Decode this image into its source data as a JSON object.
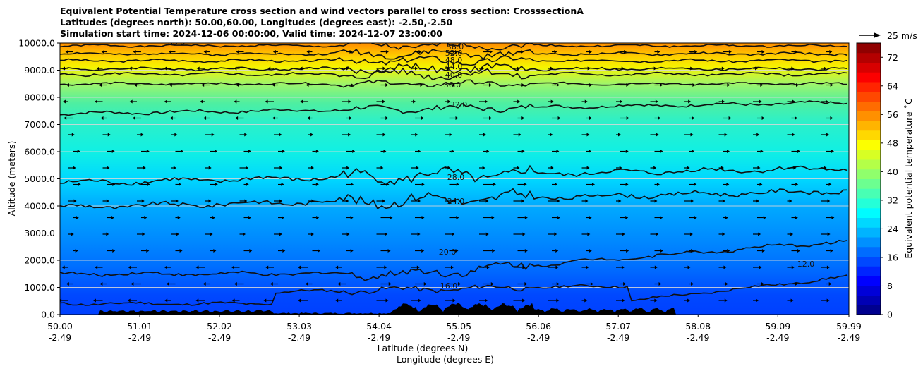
{
  "chart_data": {
    "type": "contour",
    "title_lines": [
      "Equivalent Potential Temperature cross section and wind vectors parallel to cross section: CrosssectionA",
      "Latitudes (degrees north): 50.00,60.00, Longitudes (degrees east): -2.50,-2.50",
      "Simulation start time: 2024-12-06 00:00:00, Valid time: 2024-12-07 23:00:00"
    ],
    "ylabel": "Altitude (meters)",
    "xlabel_lines": [
      "Latitude (degrees N)",
      "Longitude (degrees E)"
    ],
    "ylim": [
      0,
      10000
    ],
    "yticks": [
      "0.0",
      "1000.0",
      "2000.0",
      "3000.0",
      "4000.0",
      "5000.0",
      "6000.0",
      "7000.0",
      "8000.0",
      "9000.0",
      "10000.0"
    ],
    "xlim": [
      50.0,
      59.99
    ],
    "xticks": [
      {
        "lat": "50.00",
        "lon": "-2.49"
      },
      {
        "lat": "51.01",
        "lon": "-2.49"
      },
      {
        "lat": "52.02",
        "lon": "-2.49"
      },
      {
        "lat": "53.03",
        "lon": "-2.49"
      },
      {
        "lat": "54.04",
        "lon": "-2.49"
      },
      {
        "lat": "55.05",
        "lon": "-2.49"
      },
      {
        "lat": "56.06",
        "lon": "-2.49"
      },
      {
        "lat": "57.07",
        "lon": "-2.49"
      },
      {
        "lat": "58.08",
        "lon": "-2.49"
      },
      {
        "lat": "59.09",
        "lon": "-2.49"
      },
      {
        "lat": "59.99",
        "lon": "-2.49"
      }
    ],
    "contour_labels": [
      "60.0",
      "56.0",
      "52.0",
      "48.0",
      "44.0",
      "40.0",
      "36.0",
      "32.0",
      "28.0",
      "24.0",
      "20.0",
      "16.0",
      "12.0"
    ],
    "colorbar": {
      "label": "Equivalent potential temperature ˚C",
      "range": [
        0,
        76
      ],
      "ticks": [
        "0",
        "8",
        "16",
        "24",
        "32",
        "40",
        "48",
        "56",
        "64",
        "72"
      ]
    },
    "quiver_key": "25 m/s"
  }
}
